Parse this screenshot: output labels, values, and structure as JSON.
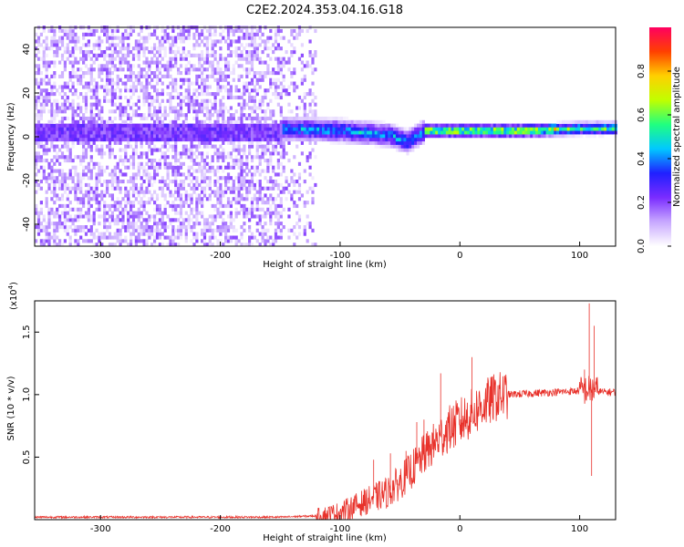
{
  "title": "C2E2.2024.353.04.16.G18",
  "chart_data": [
    {
      "type": "heatmap",
      "xlabel": "Height of straight line (km)",
      "ylabel": "Frequency (Hz)",
      "xlim": [
        -355,
        130
      ],
      "ylim": [
        -50,
        50
      ],
      "xticks": [
        -300,
        -200,
        -100,
        0,
        100
      ],
      "yticks": [
        -40,
        -20,
        0,
        20,
        40
      ],
      "colorbar": {
        "label": "Normalized spectral amplitude",
        "range": [
          0,
          1
        ],
        "ticks": [
          "0.0",
          "0.2",
          "0.4",
          "0.6",
          "0.8"
        ],
        "colormap": [
          "#ffffff",
          "#c8a8ff",
          "#7a2cff",
          "#2020ff",
          "#00c8ff",
          "#20ff80",
          "#c0ff00",
          "#ffd000",
          "#ff4000",
          "#ff0060"
        ]
      },
      "features": {
        "noise_region_x": [
          -355,
          -120
        ],
        "signal_band_center_hz": [
          {
            "x": -150,
            "f": 3
          },
          {
            "x": -100,
            "f": 2
          },
          {
            "x": -60,
            "f": 0
          },
          {
            "x": -45,
            "f": -3
          },
          {
            "x": -30,
            "f": 2
          },
          {
            "x": 0,
            "f": 2
          },
          {
            "x": 50,
            "f": 2
          },
          {
            "x": 100,
            "f": 3
          },
          {
            "x": 130,
            "f": 3
          }
        ]
      }
    },
    {
      "type": "line",
      "xlabel": "Height of straight line (km)",
      "ylabel": "SNR (10 * v/v)",
      "y_multiplier_label": "(x10",
      "y_multiplier_exp": "4",
      "xlim": [
        -355,
        130
      ],
      "ylim": [
        0,
        1.75
      ],
      "xticks": [
        -300,
        -200,
        -100,
        0,
        100
      ],
      "yticks": [
        "0.5",
        "1.0",
        "1.5"
      ],
      "color": "#e8312a",
      "series": [
        {
          "points": [
            [
              -355,
              0.02
            ],
            [
              -300,
              0.02
            ],
            [
              -250,
              0.02
            ],
            [
              -200,
              0.02
            ],
            [
              -150,
              0.02
            ],
            [
              -120,
              0.03
            ],
            [
              -100,
              0.06
            ],
            [
              -90,
              0.1
            ],
            [
              -80,
              0.14
            ],
            [
              -70,
              0.18
            ],
            [
              -60,
              0.22
            ],
            [
              -50,
              0.3
            ],
            [
              -40,
              0.4
            ],
            [
              -30,
              0.52
            ],
            [
              -20,
              0.62
            ],
            [
              -10,
              0.72
            ],
            [
              0,
              0.78
            ],
            [
              10,
              0.85
            ],
            [
              20,
              0.92
            ],
            [
              30,
              0.98
            ],
            [
              40,
              1.0
            ],
            [
              60,
              1.01
            ],
            [
              80,
              1.02
            ],
            [
              100,
              1.03
            ],
            [
              110,
              1.04
            ],
            [
              120,
              1.02
            ],
            [
              130,
              1.02
            ]
          ],
          "spikes": [
            {
              "x": -72,
              "y": 0.48
            },
            {
              "x": -58,
              "y": 0.53
            },
            {
              "x": -45,
              "y": 0.55
            },
            {
              "x": -36,
              "y": 0.78
            },
            {
              "x": -30,
              "y": 0.8
            },
            {
              "x": -16,
              "y": 1.17
            },
            {
              "x": 10,
              "y": 1.3
            },
            {
              "x": 104,
              "y": 1.2
            },
            {
              "x": 108,
              "y": 1.73
            },
            {
              "x": 110,
              "y": 0.35
            },
            {
              "x": 112,
              "y": 1.55
            }
          ]
        }
      ]
    }
  ]
}
